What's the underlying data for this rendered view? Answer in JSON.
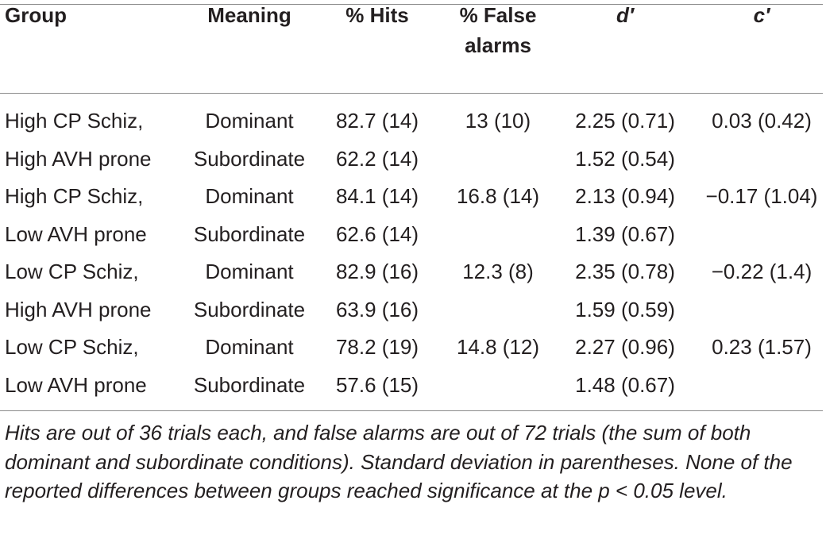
{
  "table": {
    "headers": {
      "group": "Group",
      "meaning": "Meaning",
      "hits": "% Hits",
      "false_alarms_line1": "% False",
      "false_alarms_line2": "alarms",
      "d_prime": "d′",
      "c_prime": "c′"
    },
    "rows": [
      {
        "group": "High CP Schiz,",
        "meaning": "Dominant",
        "hits": "82.7 (14)",
        "fa": "13 (10)",
        "d": "2.25 (0.71)",
        "c": "0.03 (0.42)"
      },
      {
        "group": "High AVH prone",
        "meaning": "Subordinate",
        "hits": "62.2 (14)",
        "fa": "",
        "d": "1.52 (0.54)",
        "c": ""
      },
      {
        "group": "High CP Schiz,",
        "meaning": "Dominant",
        "hits": "84.1 (14)",
        "fa": "16.8 (14)",
        "d": "2.13 (0.94)",
        "c": "−0.17 (1.04)"
      },
      {
        "group": "Low AVH prone",
        "meaning": "Subordinate",
        "hits": "62.6 (14)",
        "fa": "",
        "d": "1.39 (0.67)",
        "c": ""
      },
      {
        "group": "Low CP Schiz,",
        "meaning": "Dominant",
        "hits": "82.9 (16)",
        "fa": "12.3 (8)",
        "d": "2.35 (0.78)",
        "c": "−0.22 (1.4)"
      },
      {
        "group": "High AVH prone",
        "meaning": "Subordinate",
        "hits": "63.9 (16)",
        "fa": "",
        "d": "1.59 (0.59)",
        "c": ""
      },
      {
        "group": "Low CP Schiz,",
        "meaning": "Dominant",
        "hits": "78.2 (19)",
        "fa": "14.8 (12)",
        "d": "2.27 (0.96)",
        "c": "0.23 (1.57)"
      },
      {
        "group": "Low AVH prone",
        "meaning": "Subordinate",
        "hits": "57.6 (15)",
        "fa": "",
        "d": "1.48 (0.67)",
        "c": ""
      }
    ]
  },
  "footnote": "Hits are out of 36 trials each, and false alarms are out of 72 trials (the sum of both dominant and subordinate conditions). Standard deviation in parentheses. None of the reported differences between groups reached significance at the p < 0.05 level."
}
